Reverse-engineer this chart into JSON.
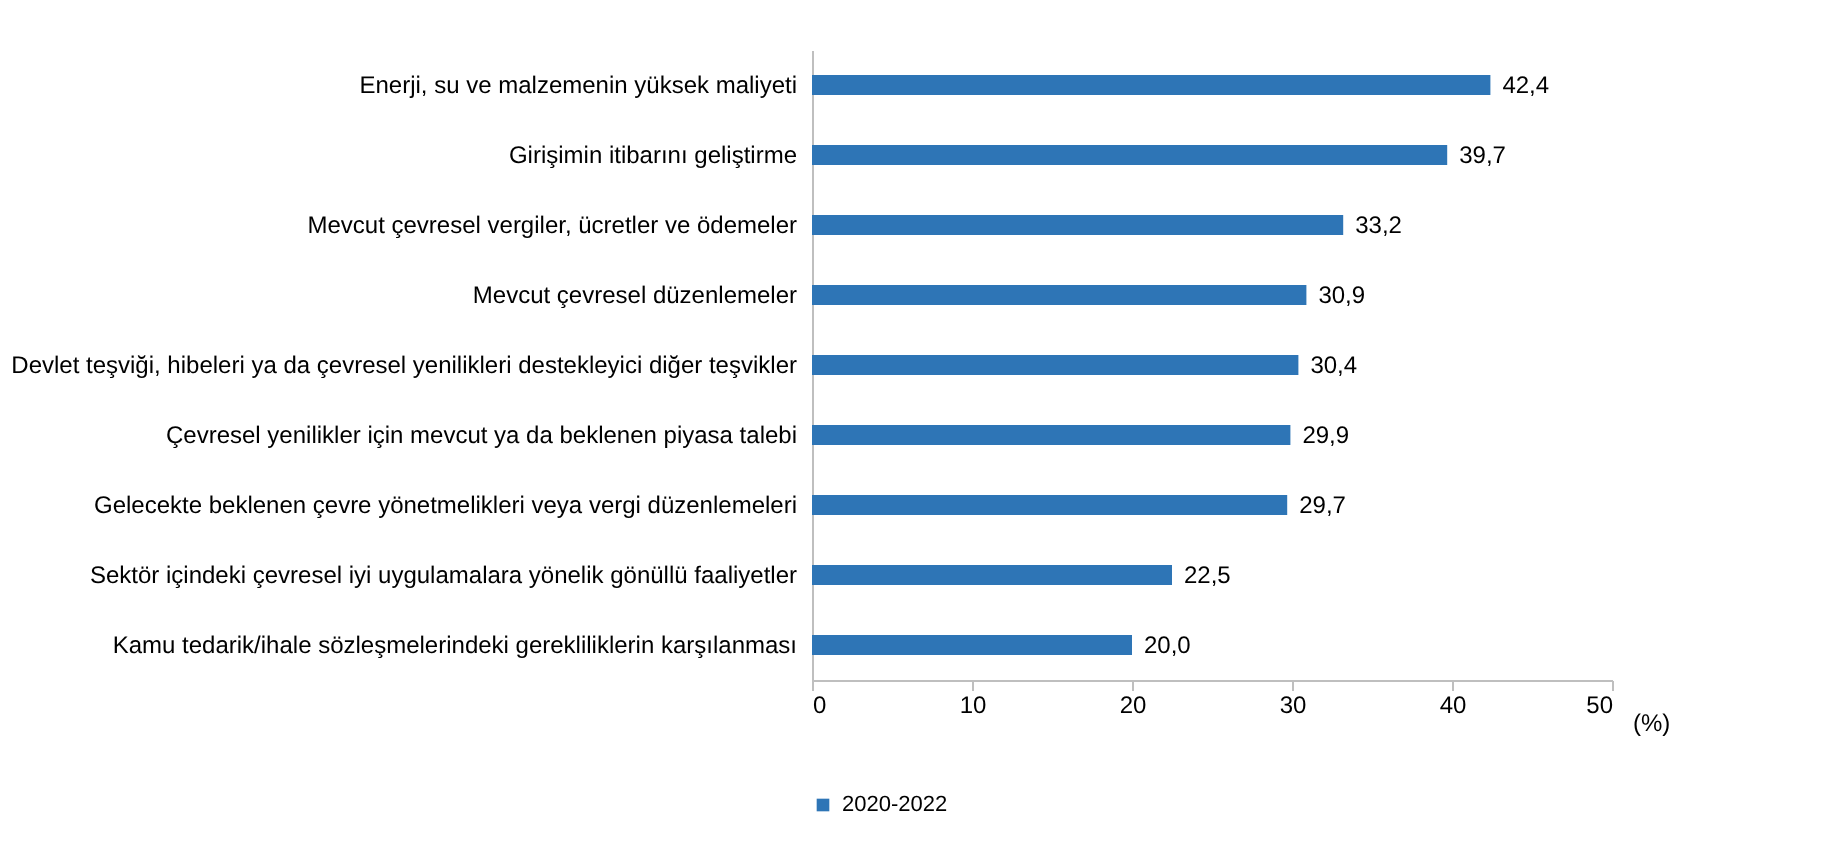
{
  "chart_data": {
    "type": "bar",
    "orientation": "horizontal",
    "categories": [
      "Enerji, su ve malzemenin yüksek maliyeti",
      "Girişimin itibarını geliştirme",
      "Mevcut çevresel vergiler, ücretler ve ödemeler",
      "Mevcut çevresel düzenlemeler",
      "Devlet teşviği, hibeleri ya da çevresel yenilikleri destekleyici diğer teşvikler",
      "Çevresel yenilikler için mevcut ya da beklenen piyasa talebi",
      "Gelecekte beklenen çevre yönetmelikleri veya vergi düzenlemeleri",
      "Sektör içindeki çevresel iyi uygulamalara yönelik gönüllü faaliyetler",
      "Kamu tedarik/ihale sözleşmelerindeki gerekliliklerin karşılanması"
    ],
    "series": [
      {
        "name": "2020-2022",
        "color": "#2e75b6",
        "values": [
          42.4,
          39.7,
          33.2,
          30.9,
          30.4,
          29.9,
          29.7,
          22.5,
          20.0
        ],
        "value_labels": [
          "42,4",
          "39,7",
          "33,2",
          "30,9",
          "30,4",
          "29,9",
          "29,7",
          "22,5",
          "20,0"
        ]
      }
    ],
    "xlabel": "(%)",
    "xlim": [
      0,
      50
    ],
    "xticks": [
      0,
      10,
      20,
      30,
      40,
      50
    ],
    "grid": false,
    "legend": "bottom"
  }
}
